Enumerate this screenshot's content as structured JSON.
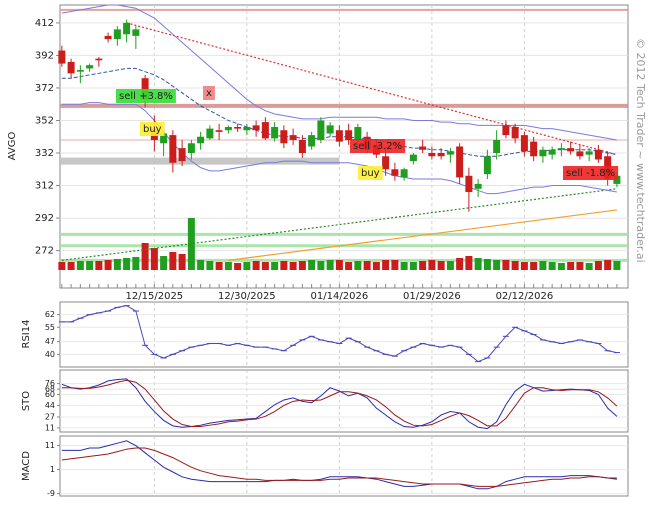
{
  "chart_data": {
    "type": "candlestick",
    "ylabel": "AVGO",
    "watermark": "© 2012 Tech Trader ~ www.techtrader.ai",
    "categories": [
      null,
      null,
      null,
      null,
      null,
      null,
      null,
      null,
      null,
      null,
      "12/15/2025",
      null,
      null,
      null,
      null,
      null,
      null,
      null,
      null,
      null,
      "12/30/2025",
      null,
      null,
      null,
      null,
      null,
      null,
      null,
      null,
      null,
      "01/14/2026",
      null,
      null,
      null,
      null,
      null,
      null,
      null,
      null,
      null,
      "01/29/2026",
      null,
      null,
      null,
      null,
      null,
      null,
      null,
      null,
      null,
      "02/12/2026",
      null,
      null,
      null,
      null,
      null,
      null,
      null,
      null,
      null,
      null
    ],
    "open": [
      395,
      388,
      382,
      384,
      390,
      404,
      402,
      405,
      404,
      378,
      347,
      338,
      343,
      335,
      332,
      338,
      341,
      346,
      346,
      348,
      346,
      349,
      351,
      341,
      346,
      343,
      340,
      336,
      340,
      344,
      346,
      346,
      340,
      342,
      337,
      330,
      322,
      317,
      327,
      336,
      332,
      332,
      331,
      336,
      318,
      310,
      319,
      332,
      349,
      348,
      343,
      339,
      330,
      331,
      334,
      335,
      333,
      331,
      334,
      330,
      313
    ],
    "high": [
      398,
      390,
      386,
      387,
      391,
      406,
      410,
      414,
      410,
      380,
      355,
      346,
      346,
      340,
      340,
      345,
      349,
      350,
      349,
      350,
      350,
      352,
      354,
      351,
      349,
      347,
      343,
      345,
      354,
      351,
      349,
      350,
      350,
      345,
      340,
      335,
      326,
      323,
      332,
      340,
      336,
      335,
      335,
      338,
      323,
      316,
      334,
      346,
      352,
      350,
      345,
      342,
      336,
      336,
      338,
      339,
      337,
      335,
      337,
      333,
      320
    ],
    "low": [
      385,
      378,
      375,
      382,
      385,
      400,
      398,
      400,
      396,
      360,
      333,
      330,
      320,
      324,
      328,
      334,
      340,
      340,
      344,
      345,
      343,
      342,
      340,
      339,
      335,
      337,
      329,
      334,
      338,
      342,
      336,
      337,
      338,
      332,
      329,
      318,
      315,
      315,
      325,
      332,
      328,
      328,
      326,
      313,
      296,
      305,
      316,
      328,
      341,
      338,
      330,
      327,
      326,
      328,
      330,
      331,
      328,
      327,
      326,
      312,
      311
    ],
    "close": [
      387,
      381,
      383,
      386,
      389,
      402,
      408,
      412,
      408,
      365,
      340,
      344,
      326,
      327,
      338,
      342,
      347,
      345,
      348,
      347,
      348,
      346,
      341,
      348,
      338,
      340,
      332,
      343,
      352,
      349,
      339,
      340,
      348,
      334,
      331,
      322,
      318,
      322,
      331,
      334,
      330,
      330,
      333,
      317,
      308,
      313,
      330,
      340,
      343,
      341,
      333,
      330,
      334,
      334,
      335,
      333,
      330,
      333,
      328,
      316,
      318
    ],
    "up_color": "#1f9e1f",
    "down_color": "#cc1d1d",
    "volume": [
      8,
      8,
      9,
      9,
      9,
      10,
      11,
      12,
      13,
      27,
      22,
      14,
      18,
      16,
      52,
      10,
      9,
      8,
      8,
      7,
      8,
      9,
      8,
      8,
      9,
      8,
      9,
      10,
      9,
      10,
      10,
      8,
      9,
      9,
      8,
      10,
      10,
      8,
      8,
      9,
      10,
      9,
      9,
      12,
      14,
      12,
      11,
      10,
      10,
      9,
      8,
      8,
      9,
      8,
      7,
      8,
      8,
      7,
      9,
      10,
      9
    ],
    "ylim": [
      249,
      423
    ],
    "yticks": [
      272,
      292,
      312,
      332,
      352,
      372,
      392,
      412
    ],
    "overlays": [
      {
        "color": "#7a7ae0",
        "dash": false,
        "values": [
          418,
          419,
          420,
          421,
          422,
          423,
          423,
          422,
          421,
          418,
          415,
          410,
          405,
          400,
          395,
          390,
          385,
          380,
          375,
          370,
          365,
          361,
          358,
          356,
          355,
          354,
          353,
          353,
          353,
          354,
          354,
          354,
          354,
          354,
          354,
          353,
          353,
          353,
          352,
          352,
          352,
          351,
          351,
          350,
          350,
          349,
          349,
          349,
          349,
          349,
          349,
          348,
          347,
          347,
          346,
          345,
          344,
          343,
          342,
          341,
          340
        ]
      },
      {
        "color": "#7a7ae0",
        "dash": false,
        "values": [
          362,
          362,
          362,
          363,
          363,
          362,
          362,
          362,
          362,
          358,
          352,
          345,
          338,
          332,
          327,
          323,
          321,
          321,
          322,
          323,
          324,
          325,
          326,
          326,
          327,
          327,
          327,
          326,
          326,
          326,
          326,
          326,
          325,
          324,
          322,
          320,
          318,
          317,
          316,
          316,
          316,
          316,
          315,
          313,
          311,
          309,
          307,
          307,
          308,
          309,
          310,
          311,
          311,
          312,
          312,
          312,
          312,
          311,
          310,
          309,
          308
        ]
      },
      {
        "color": "#3355aa",
        "dash": true,
        "values": [
          378,
          378,
          379,
          380,
          381,
          382,
          383,
          384,
          384,
          382,
          380,
          377,
          373,
          369,
          365,
          361,
          358,
          355,
          352,
          350,
          348,
          346,
          344,
          343,
          342,
          342,
          341,
          341,
          341,
          342,
          342,
          342,
          341,
          341,
          340,
          339,
          338,
          336,
          335,
          335,
          334,
          334,
          333,
          332,
          331,
          330,
          330,
          330,
          331,
          332,
          333,
          333,
          333,
          334,
          334,
          334,
          334,
          334,
          333,
          332,
          331
        ]
      }
    ],
    "levels": [
      {
        "value": 420,
        "color": "#e09090",
        "width": 2
      },
      {
        "value": 361,
        "color": "#d48a8a",
        "width": 4
      },
      {
        "value": 340,
        "color": "#e6a0a0",
        "width": 1
      },
      {
        "value": 327,
        "color": "#bdbdbd",
        "width": 7
      },
      {
        "value": 282,
        "color": "#9be29b",
        "width": 3
      },
      {
        "value": 275,
        "color": "#9be29b",
        "width": 3
      },
      {
        "value": 266,
        "color": "#9be29b",
        "width": 3
      }
    ],
    "trendlines": [
      {
        "from": [
          7,
          412
        ],
        "to": [
          60,
          331
        ],
        "color": "#e03030"
      },
      {
        "from": [
          0,
          266
        ],
        "to": [
          60,
          310
        ],
        "color": "#2a8a2a"
      },
      {
        "from": [
          18,
          266
        ],
        "to": [
          60,
          297
        ],
        "color": "#f0a030"
      }
    ],
    "annotations": [
      {
        "text": "sell +3.8%",
        "color": "#33dd33"
      },
      {
        "text": "buy",
        "color": "#ffee33"
      },
      {
        "text": "x",
        "color": "#f08080"
      },
      {
        "text": "sell -3.2%",
        "color": "#ee2222"
      },
      {
        "text": "buy",
        "color": "#ffee33"
      },
      {
        "text": "sell -1.8%",
        "color": "#ee2222"
      }
    ],
    "rsi": {
      "label": "RSI14",
      "color": "#4848b8",
      "ylim": [
        33,
        69
      ],
      "yticks": [
        40,
        47,
        55,
        62
      ],
      "values": [
        58,
        58,
        60,
        62,
        63,
        64,
        66,
        67,
        64,
        45,
        40,
        38,
        40,
        42,
        44,
        45,
        46,
        46,
        45,
        46,
        45,
        44,
        44,
        43,
        42,
        45,
        48,
        50,
        48,
        47,
        46,
        49,
        47,
        44,
        42,
        40,
        39,
        42,
        44,
        46,
        45,
        44,
        45,
        44,
        40,
        36,
        38,
        44,
        50,
        55,
        53,
        51,
        48,
        47,
        46,
        47,
        48,
        47,
        46,
        42,
        41
      ]
    },
    "sto": {
      "label": "STO",
      "ylim": [
        5,
        96
      ],
      "yticks": [
        11,
        27,
        44,
        60,
        68,
        76
      ],
      "series": [
        {
          "color": "#2a2ab0",
          "values": [
            75,
            70,
            68,
            70,
            74,
            80,
            82,
            83,
            70,
            50,
            35,
            22,
            14,
            12,
            13,
            15,
            18,
            20,
            22,
            23,
            24,
            25,
            35,
            45,
            52,
            55,
            50,
            48,
            58,
            70,
            65,
            58,
            62,
            55,
            40,
            30,
            20,
            13,
            12,
            15,
            20,
            30,
            35,
            33,
            20,
            12,
            10,
            20,
            45,
            65,
            75,
            70,
            65,
            66,
            67,
            68,
            67,
            66,
            60,
            40,
            28
          ]
        },
        {
          "color": "#9a1a1a",
          "values": [
            70,
            70,
            69,
            69,
            71,
            74,
            78,
            81,
            78,
            68,
            52,
            36,
            24,
            16,
            13,
            13,
            15,
            17,
            20,
            21,
            23,
            24,
            28,
            35,
            44,
            50,
            52,
            51,
            52,
            58,
            64,
            64,
            62,
            58,
            52,
            42,
            30,
            21,
            15,
            14,
            16,
            22,
            28,
            33,
            29,
            22,
            14,
            14,
            25,
            43,
            62,
            70,
            70,
            67,
            66,
            67,
            67,
            67,
            64,
            55,
            43
          ]
        }
      ]
    },
    "macd": {
      "label": "MACD",
      "ylim": [
        -10,
        15
      ],
      "yticks": [
        -9,
        1,
        11
      ],
      "series": [
        {
          "color": "#2a2ab0",
          "values": [
            9,
            9,
            9,
            10,
            10,
            11,
            12,
            13,
            11,
            8,
            5,
            2,
            0,
            -2,
            -3,
            -3.5,
            -4,
            -4,
            -4,
            -4,
            -4,
            -4,
            -4,
            -3.5,
            -3.5,
            -3,
            -3.5,
            -3.5,
            -3,
            -2,
            -2,
            -2,
            -2,
            -2.5,
            -3,
            -4,
            -5,
            -6,
            -6,
            -5.5,
            -5,
            -5,
            -5,
            -5,
            -6,
            -7,
            -7,
            -6,
            -4,
            -3,
            -2,
            -2,
            -2,
            -2,
            -2,
            -1.5,
            -1.5,
            -1.5,
            -2,
            -2.5,
            -3
          ]
        },
        {
          "color": "#9a1a1a",
          "values": [
            5,
            5.5,
            6,
            6.5,
            7,
            7.5,
            8.5,
            9.5,
            10,
            10,
            9,
            7.5,
            6,
            4,
            2,
            0.5,
            -0.5,
            -1.5,
            -2,
            -2.5,
            -3,
            -3,
            -3.5,
            -3.5,
            -3.5,
            -3.5,
            -3.5,
            -3.5,
            -3.5,
            -3,
            -3,
            -2.5,
            -2.5,
            -2.5,
            -2.5,
            -3,
            -3.5,
            -4,
            -4.5,
            -5,
            -5,
            -5,
            -5,
            -5,
            -5.5,
            -6,
            -6,
            -6,
            -5.5,
            -5,
            -4.5,
            -4,
            -3.5,
            -3,
            -3,
            -2.5,
            -2.5,
            -2,
            -2,
            -2.5,
            -2.5
          ]
        }
      ]
    }
  }
}
